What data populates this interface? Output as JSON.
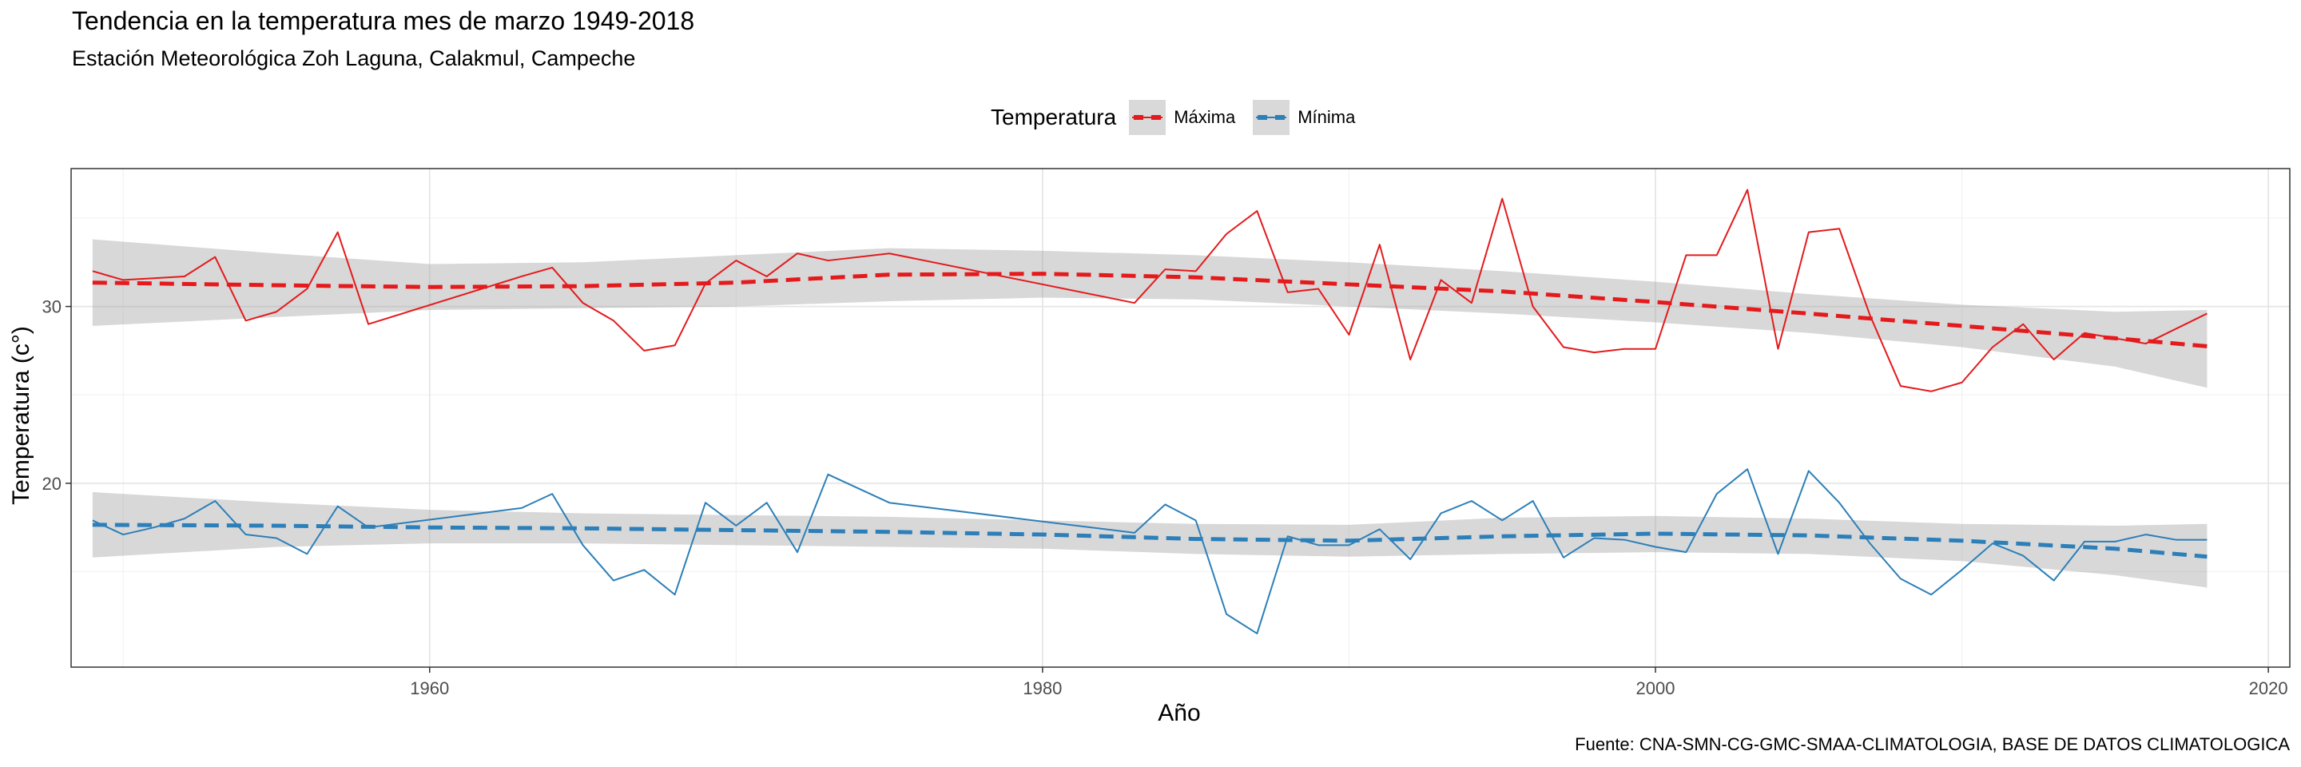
{
  "chart_data": {
    "type": "line",
    "title": "Tendencia en la temperatura mes de marzo 1949-2018",
    "subtitle": "Estación Meteorológica Zoh Laguna, Calakmul, Campeche",
    "caption": "Fuente: CNA-SMN-CG-GMC-SMAA-CLIMATOLOGIA, BASE DE DATOS CLIMATOLOGICA",
    "xlabel": "Año",
    "ylabel": "Temperatura (c°)",
    "xlim": [
      1948.3,
      2020.7
    ],
    "ylim": [
      9.6,
      37.8
    ],
    "x_ticks": [
      1960,
      1980,
      2000,
      2020
    ],
    "y_ticks": [
      20,
      30
    ],
    "grid": true,
    "legend": {
      "title": "Temperatura",
      "position": "top"
    },
    "series": [
      {
        "name": "Máxima",
        "color": "#e41a1c",
        "points": [
          [
            1949,
            32.0
          ],
          [
            1950,
            31.5
          ],
          [
            1951,
            31.6
          ],
          [
            1952,
            31.7
          ],
          [
            1953,
            32.8
          ],
          [
            1954,
            29.2
          ],
          [
            1955,
            29.7
          ],
          [
            1956,
            31.0
          ],
          [
            1957,
            34.2
          ],
          [
            1958,
            29.0
          ],
          [
            1963,
            31.7
          ],
          [
            1964,
            32.2
          ],
          [
            1965,
            30.2
          ],
          [
            1966,
            29.2
          ],
          [
            1967,
            27.5
          ],
          [
            1968,
            27.8
          ],
          [
            1969,
            31.3
          ],
          [
            1970,
            32.6
          ],
          [
            1971,
            31.7
          ],
          [
            1972,
            33.0
          ],
          [
            1973,
            32.6
          ],
          [
            1975,
            33.0
          ],
          [
            1983,
            30.2
          ],
          [
            1984,
            32.1
          ],
          [
            1985,
            32.0
          ],
          [
            1986,
            34.1
          ],
          [
            1987,
            35.4
          ],
          [
            1988,
            30.8
          ],
          [
            1989,
            31.0
          ],
          [
            1990,
            28.4
          ],
          [
            1991,
            33.5
          ],
          [
            1992,
            27.0
          ],
          [
            1993,
            31.5
          ],
          [
            1994,
            30.2
          ],
          [
            1995,
            36.1
          ],
          [
            1996,
            30.0
          ],
          [
            1997,
            27.7
          ],
          [
            1998,
            27.4
          ],
          [
            1999,
            27.6
          ],
          [
            2000,
            27.6
          ],
          [
            2001,
            32.9
          ],
          [
            2002,
            32.9
          ],
          [
            2003,
            36.6
          ],
          [
            2004,
            27.6
          ],
          [
            2005,
            34.2
          ],
          [
            2006,
            34.4
          ],
          [
            2007,
            29.5
          ],
          [
            2008,
            25.5
          ],
          [
            2009,
            25.2
          ],
          [
            2010,
            25.7
          ],
          [
            2011,
            27.7
          ],
          [
            2012,
            29.0
          ],
          [
            2013,
            27.0
          ],
          [
            2014,
            28.5
          ],
          [
            2016,
            27.9
          ],
          [
            2018,
            29.6
          ]
        ],
        "trend": [
          [
            1949,
            31.35
          ],
          [
            1955,
            31.2
          ],
          [
            1960,
            31.1
          ],
          [
            1965,
            31.15
          ],
          [
            1970,
            31.35
          ],
          [
            1975,
            31.8
          ],
          [
            1980,
            31.85
          ],
          [
            1985,
            31.65
          ],
          [
            1990,
            31.25
          ],
          [
            1995,
            30.85
          ],
          [
            2000,
            30.25
          ],
          [
            2005,
            29.6
          ],
          [
            2010,
            28.9
          ],
          [
            2015,
            28.2
          ],
          [
            2018,
            27.75
          ]
        ],
        "band_upper": [
          [
            1949,
            33.8
          ],
          [
            1955,
            33.0
          ],
          [
            1960,
            32.4
          ],
          [
            1965,
            32.5
          ],
          [
            1970,
            32.9
          ],
          [
            1975,
            33.3
          ],
          [
            1980,
            33.15
          ],
          [
            1985,
            32.9
          ],
          [
            1990,
            32.5
          ],
          [
            1995,
            32.0
          ],
          [
            2000,
            31.4
          ],
          [
            2005,
            30.7
          ],
          [
            2010,
            30.1
          ],
          [
            2015,
            29.7
          ],
          [
            2018,
            29.8
          ]
        ],
        "band_lower": [
          [
            1949,
            28.9
          ],
          [
            1955,
            29.4
          ],
          [
            1960,
            29.8
          ],
          [
            1965,
            29.9
          ],
          [
            1970,
            30.0
          ],
          [
            1975,
            30.3
          ],
          [
            1980,
            30.5
          ],
          [
            1985,
            30.4
          ],
          [
            1990,
            30.0
          ],
          [
            1995,
            29.6
          ],
          [
            2000,
            29.1
          ],
          [
            2005,
            28.5
          ],
          [
            2010,
            27.7
          ],
          [
            2015,
            26.6
          ],
          [
            2018,
            25.4
          ]
        ]
      },
      {
        "name": "Mínima",
        "color": "#2c7fb8",
        "points": [
          [
            1949,
            17.9
          ],
          [
            1950,
            17.1
          ],
          [
            1951,
            17.5
          ],
          [
            1952,
            18.0
          ],
          [
            1953,
            19.0
          ],
          [
            1954,
            17.1
          ],
          [
            1955,
            16.9
          ],
          [
            1956,
            16.0
          ],
          [
            1957,
            18.7
          ],
          [
            1958,
            17.5
          ],
          [
            1963,
            18.6
          ],
          [
            1964,
            19.4
          ],
          [
            1965,
            16.5
          ],
          [
            1966,
            14.5
          ],
          [
            1967,
            15.1
          ],
          [
            1968,
            13.7
          ],
          [
            1969,
            18.9
          ],
          [
            1970,
            17.6
          ],
          [
            1971,
            18.9
          ],
          [
            1972,
            16.1
          ],
          [
            1973,
            20.5
          ],
          [
            1975,
            18.9
          ],
          [
            1983,
            17.2
          ],
          [
            1984,
            18.8
          ],
          [
            1985,
            17.9
          ],
          [
            1986,
            12.6
          ],
          [
            1987,
            11.5
          ],
          [
            1988,
            17.0
          ],
          [
            1989,
            16.5
          ],
          [
            1990,
            16.5
          ],
          [
            1991,
            17.4
          ],
          [
            1992,
            15.7
          ],
          [
            1993,
            18.3
          ],
          [
            1994,
            19.0
          ],
          [
            1995,
            17.9
          ],
          [
            1996,
            19.0
          ],
          [
            1997,
            15.8
          ],
          [
            1998,
            16.9
          ],
          [
            1999,
            16.8
          ],
          [
            2000,
            16.4
          ],
          [
            2001,
            16.1
          ],
          [
            2002,
            19.4
          ],
          [
            2003,
            20.8
          ],
          [
            2004,
            16.0
          ],
          [
            2005,
            20.7
          ],
          [
            2006,
            18.9
          ],
          [
            2007,
            16.6
          ],
          [
            2008,
            14.6
          ],
          [
            2009,
            13.7
          ],
          [
            2010,
            15.1
          ],
          [
            2011,
            16.6
          ],
          [
            2012,
            15.9
          ],
          [
            2013,
            14.5
          ],
          [
            2014,
            16.7
          ],
          [
            2015,
            16.7
          ],
          [
            2016,
            17.1
          ],
          [
            2017,
            16.8
          ],
          [
            2018,
            16.8
          ]
        ],
        "trend": [
          [
            1949,
            17.65
          ],
          [
            1955,
            17.6
          ],
          [
            1960,
            17.5
          ],
          [
            1965,
            17.45
          ],
          [
            1970,
            17.35
          ],
          [
            1975,
            17.25
          ],
          [
            1980,
            17.1
          ],
          [
            1985,
            16.85
          ],
          [
            1990,
            16.75
          ],
          [
            1995,
            17.0
          ],
          [
            2000,
            17.15
          ],
          [
            2005,
            17.05
          ],
          [
            2010,
            16.75
          ],
          [
            2015,
            16.3
          ],
          [
            2018,
            15.85
          ]
        ],
        "band_upper": [
          [
            1949,
            19.5
          ],
          [
            1955,
            18.9
          ],
          [
            1960,
            18.5
          ],
          [
            1965,
            18.3
          ],
          [
            1970,
            18.2
          ],
          [
            1975,
            18.1
          ],
          [
            1980,
            17.9
          ],
          [
            1985,
            17.7
          ],
          [
            1990,
            17.65
          ],
          [
            1995,
            18.05
          ],
          [
            2000,
            18.15
          ],
          [
            2005,
            18.0
          ],
          [
            2010,
            17.7
          ],
          [
            2015,
            17.6
          ],
          [
            2018,
            17.7
          ]
        ],
        "band_lower": [
          [
            1949,
            15.8
          ],
          [
            1955,
            16.4
          ],
          [
            1960,
            16.6
          ],
          [
            1965,
            16.6
          ],
          [
            1970,
            16.5
          ],
          [
            1975,
            16.4
          ],
          [
            1980,
            16.3
          ],
          [
            1985,
            16.0
          ],
          [
            1990,
            15.85
          ],
          [
            1995,
            16.0
          ],
          [
            2000,
            16.1
          ],
          [
            2005,
            16.0
          ],
          [
            2010,
            15.6
          ],
          [
            2015,
            14.8
          ],
          [
            2018,
            14.1
          ]
        ]
      }
    ]
  }
}
